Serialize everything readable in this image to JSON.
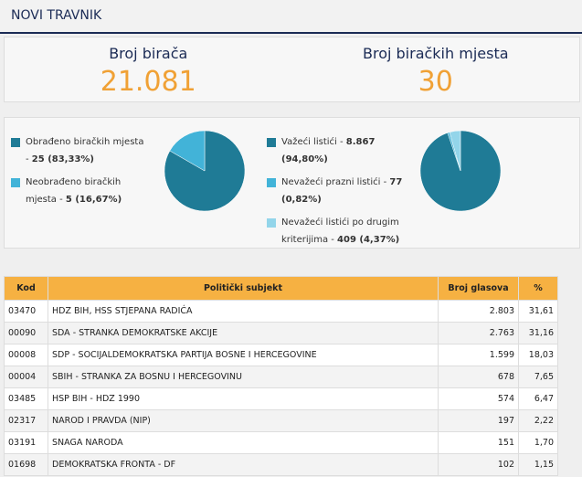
{
  "header": {
    "title": "NOVI TRAVNIK"
  },
  "stats": [
    {
      "label": "Broj birača",
      "value": "21.081"
    },
    {
      "label": "Broj biračkih mjesta",
      "value": "30"
    }
  ],
  "pies": [
    {
      "items": [
        {
          "label": "Obrađeno biračkih mjesta -",
          "value_label": "25 (83,33%)",
          "percent": 83.33,
          "color": "#1f7b96"
        },
        {
          "label": "Neobrađeno biračkih mjesta -",
          "value_label": "5 (16,67%)",
          "percent": 16.67,
          "color": "#42b3d8"
        }
      ]
    },
    {
      "items": [
        {
          "label": "Važeći listići -",
          "value_label": "8.867 (94,80%)",
          "percent": 94.8,
          "color": "#1f7b96"
        },
        {
          "label": "Nevažeći prazni listići -",
          "value_label": "77 (0,82%)",
          "percent": 0.82,
          "color": "#42b3d8"
        },
        {
          "label": "Nevažeći listići po drugim kriterijima -",
          "value_label": "409 (4,37%)",
          "percent": 4.37,
          "color": "#93d5ea"
        }
      ]
    }
  ],
  "table": {
    "columns": [
      "Kod",
      "Politički subjekt",
      "Broj glasova",
      "%"
    ],
    "rows": [
      [
        "03470",
        "HDZ BIH, HSS STJEPANA RADIĆA",
        "2.803",
        "31,61"
      ],
      [
        "00090",
        "SDA - STRANKA DEMOKRATSKE AKCIJE",
        "2.763",
        "31,16"
      ],
      [
        "00008",
        "SDP - SOCIJALDEMOKRATSKA PARTIJA BOSNE I HERCEGOVINE",
        "1.599",
        "18,03"
      ],
      [
        "00004",
        "SBIH - STRANKA ZA BOSNU I HERCEGOVINU",
        "678",
        "7,65"
      ],
      [
        "03485",
        "HSP BIH - HDZ 1990",
        "574",
        "6,47"
      ],
      [
        "02317",
        "NAROD I PRAVDA (NIP)",
        "197",
        "2,22"
      ],
      [
        "03191",
        "SNAGA NARODA",
        "151",
        "1,70"
      ],
      [
        "01698",
        "DEMOKRATSKA FRONTA - DF",
        "102",
        "1,15"
      ]
    ]
  }
}
